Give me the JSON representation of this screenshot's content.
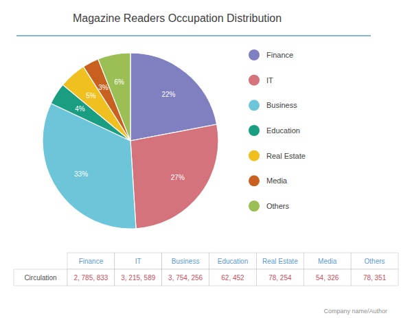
{
  "chart_data": {
    "type": "pie",
    "title": "Magazine Readers Occupation Distribution",
    "categories": [
      "Finance",
      "IT",
      "Business",
      "Education",
      "Real Estate",
      "Media",
      "Others"
    ],
    "values": [
      22,
      27,
      33,
      4,
      5,
      3,
      6
    ],
    "value_labels": [
      "22%",
      "27%",
      "33%",
      "4%",
      "5%",
      "3%",
      "6%"
    ],
    "colors": [
      "#8080C0",
      "#D4737B",
      "#6CC5D8",
      "#1A9E82",
      "#F0C020",
      "#C86020",
      "#9BBF55"
    ],
    "data_labels": true,
    "legend": "right",
    "table": {
      "row_labels": [
        "Circulation"
      ],
      "cells": [
        [
          "2, 785, 833",
          "3, 215, 589",
          "3, 754, 256",
          "62, 452",
          "78, 254",
          "54, 326",
          "78, 351"
        ]
      ]
    },
    "footer": "Company name/Author"
  }
}
